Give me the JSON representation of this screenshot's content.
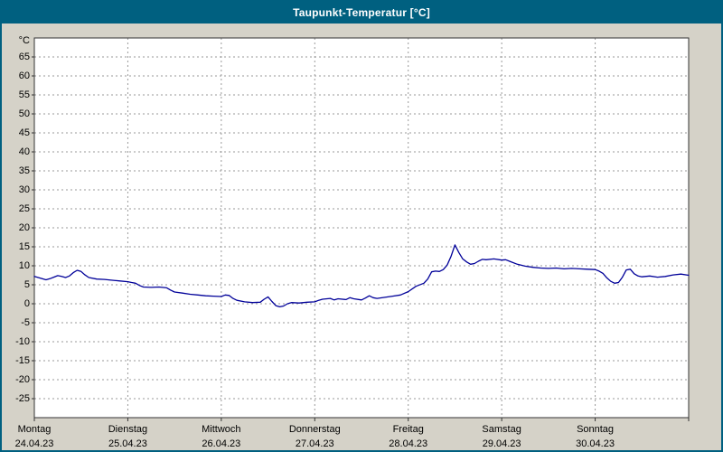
{
  "window": {
    "title": "Taupunkt-Temperatur [°C]"
  },
  "colors": {
    "titlebar": "#006080",
    "background": "#d5d2c8",
    "plot_bg": "#ffffff",
    "grid": "#9a9a9a",
    "axis": "#333333",
    "line": "#000099",
    "text": "#000000"
  },
  "chart_data": {
    "type": "line",
    "title": "Taupunkt-Temperatur [°C]",
    "ylabel_unit": "°C",
    "ylim": [
      -30,
      70
    ],
    "xlim_hours": [
      0,
      168
    ],
    "grid": "dashed, horizontal every 5 °C, vertical at day boundaries",
    "legend": "none",
    "y_ticks": [
      65,
      60,
      55,
      50,
      45,
      40,
      35,
      30,
      25,
      20,
      15,
      10,
      5,
      0,
      -5,
      -10,
      -15,
      -20,
      -25
    ],
    "x_ticks": [
      {
        "day": "Montag",
        "date": "24.04.23",
        "hour": 0
      },
      {
        "day": "Dienstag",
        "date": "25.04.23",
        "hour": 24
      },
      {
        "day": "Mittwoch",
        "date": "26.04.23",
        "hour": 48
      },
      {
        "day": "Donnerstag",
        "date": "27.04.23",
        "hour": 72
      },
      {
        "day": "Freitag",
        "date": "28.04.23",
        "hour": 96
      },
      {
        "day": "Samstag",
        "date": "29.04.23",
        "hour": 120
      },
      {
        "day": "Sonntag",
        "date": "30.04.23",
        "hour": 144
      }
    ],
    "series": [
      {
        "name": "Taupunkt-Temperatur",
        "color": "#000099",
        "x_hours": [
          0,
          1,
          2,
          3,
          4,
          5,
          6,
          7,
          8,
          9,
          10,
          11,
          12,
          13,
          14,
          16,
          18,
          20,
          22,
          24,
          25,
          26,
          27,
          28,
          30,
          32,
          34,
          35,
          36,
          38,
          40,
          42,
          44,
          46,
          48,
          49,
          50,
          51,
          52,
          54,
          56,
          58,
          59,
          60,
          61,
          62,
          63,
          64,
          65,
          66,
          68,
          70,
          72,
          73,
          74,
          76,
          77,
          78,
          80,
          81,
          82,
          84,
          85,
          86,
          87,
          88,
          90,
          92,
          94,
          96,
          98,
          100,
          101,
          102,
          103,
          104,
          105,
          106,
          107,
          108,
          109,
          110,
          111,
          112,
          113,
          114,
          115,
          116,
          118,
          120,
          121,
          122,
          124,
          126,
          128,
          130,
          132,
          134,
          136,
          138,
          140,
          142,
          144,
          145,
          146,
          147,
          148,
          149,
          150,
          151,
          152,
          153,
          154,
          155,
          156,
          158,
          160,
          162,
          164,
          166,
          168
        ],
        "values": [
          7.2,
          6.9,
          6.6,
          6.3,
          6.6,
          7.0,
          7.4,
          7.2,
          6.9,
          7.3,
          8.2,
          8.8,
          8.5,
          7.6,
          6.9,
          6.5,
          6.4,
          6.2,
          6.0,
          5.8,
          5.6,
          5.4,
          4.8,
          4.4,
          4.3,
          4.4,
          4.2,
          3.6,
          3.1,
          2.8,
          2.5,
          2.3,
          2.1,
          2.0,
          1.9,
          2.3,
          2.2,
          1.4,
          0.9,
          0.5,
          0.3,
          0.4,
          1.2,
          1.8,
          0.6,
          -0.5,
          -0.8,
          -0.6,
          0.0,
          0.3,
          0.2,
          0.4,
          0.5,
          0.9,
          1.2,
          1.4,
          1.0,
          1.3,
          1.1,
          1.6,
          1.3,
          1.0,
          1.5,
          2.1,
          1.6,
          1.4,
          1.7,
          2.0,
          2.3,
          3.2,
          4.6,
          5.4,
          6.5,
          8.4,
          8.6,
          8.5,
          9.0,
          10.2,
          12.5,
          15.5,
          13.5,
          11.8,
          11.0,
          10.4,
          10.6,
          11.2,
          11.7,
          11.6,
          11.8,
          11.5,
          11.6,
          11.2,
          10.4,
          9.9,
          9.6,
          9.4,
          9.3,
          9.4,
          9.2,
          9.3,
          9.2,
          9.1,
          9.0,
          8.6,
          8.0,
          6.8,
          5.9,
          5.4,
          5.6,
          7.0,
          8.9,
          9.1,
          7.9,
          7.3,
          7.1,
          7.3,
          7.0,
          7.2,
          7.6,
          7.8,
          7.5
        ]
      }
    ]
  }
}
